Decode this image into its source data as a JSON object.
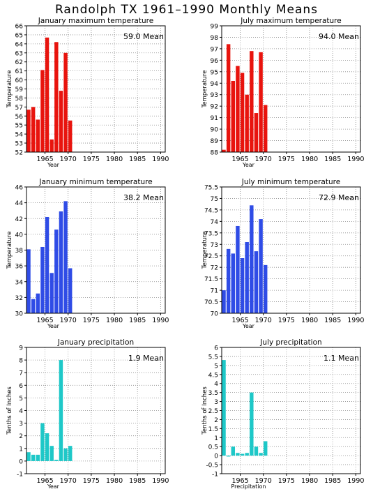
{
  "title": "Randolph TX   1961–1990 Monthly Means",
  "chart_data": [
    {
      "type": "bar",
      "title": "January maximum temperature",
      "ylabel": "Temperature",
      "xlabel": "Year",
      "color": "#e8140e",
      "ylim": [
        52,
        66
      ],
      "yticks": [
        52,
        53,
        54,
        55,
        56,
        57,
        58,
        59,
        60,
        61,
        62,
        63,
        64,
        65,
        66
      ],
      "xlim": [
        1961,
        1990
      ],
      "xticks": [
        1965,
        1970,
        1975,
        1980,
        1985,
        1990
      ],
      "mean_label": "59.0  Mean",
      "x": [
        1961,
        1962,
        1963,
        1964,
        1965,
        1966,
        1967,
        1968,
        1969,
        1970
      ],
      "values": [
        56.7,
        57.0,
        55.6,
        61.1,
        64.7,
        53.4,
        64.2,
        58.8,
        63.0,
        55.5
      ]
    },
    {
      "type": "bar",
      "title": "July maximum temperature",
      "ylabel": "Temperature",
      "xlabel": "Year",
      "color": "#e8140e",
      "ylim": [
        88,
        99
      ],
      "yticks": [
        88,
        89,
        90,
        91,
        92,
        93,
        94,
        95,
        96,
        97,
        98,
        99
      ],
      "xlim": [
        1961,
        1990
      ],
      "xticks": [
        1965,
        1970,
        1975,
        1980,
        1985,
        1990
      ],
      "mean_label": "94.0  Mean",
      "x": [
        1961,
        1962,
        1963,
        1964,
        1965,
        1966,
        1967,
        1968,
        1969,
        1970
      ],
      "values": [
        88.2,
        97.4,
        94.2,
        95.5,
        94.9,
        93.0,
        96.8,
        91.4,
        96.7,
        92.1
      ]
    },
    {
      "type": "bar",
      "title": "January minimum temperature",
      "ylabel": "Temperature",
      "xlabel": "Year",
      "color": "#2f4ce6",
      "ylim": [
        30,
        46
      ],
      "yticks": [
        30,
        32,
        34,
        36,
        38,
        40,
        42,
        44,
        46
      ],
      "xlim": [
        1961,
        1990
      ],
      "xticks": [
        1965,
        1970,
        1975,
        1980,
        1985,
        1990
      ],
      "mean_label": "38.2  Mean",
      "x": [
        1961,
        1962,
        1963,
        1964,
        1965,
        1966,
        1967,
        1968,
        1969,
        1970
      ],
      "values": [
        38.1,
        31.8,
        32.5,
        38.4,
        42.2,
        35.1,
        40.6,
        42.9,
        44.2,
        35.7
      ]
    },
    {
      "type": "bar",
      "title": "July minimum temperature",
      "ylabel": "Temperature",
      "xlabel": "Year",
      "color": "#2f4ce6",
      "ylim": [
        70,
        75.5
      ],
      "yticks": [
        70,
        70.5,
        71,
        71.5,
        72,
        72.5,
        73,
        73.5,
        74,
        74.5,
        75,
        75.5
      ],
      "ytick_labels": [
        "70",
        "70.5",
        "71",
        "71.5",
        "72",
        "72.5",
        "73",
        "73.5",
        "74",
        "74.5",
        "75",
        "75.5"
      ],
      "xlim": [
        1961,
        1990
      ],
      "xticks": [
        1965,
        1970,
        1975,
        1980,
        1985,
        1990
      ],
      "mean_label": "72.9  Mean",
      "x": [
        1961,
        1962,
        1963,
        1964,
        1965,
        1966,
        1967,
        1968,
        1969,
        1970
      ],
      "values": [
        71.0,
        72.8,
        72.6,
        73.8,
        72.4,
        73.1,
        74.7,
        72.7,
        74.1,
        72.1
      ]
    },
    {
      "type": "bar",
      "title": "January precipitation",
      "ylabel": "Tenths of Inches",
      "xlabel": "Year",
      "color": "#1ec8c8",
      "ylim": [
        -1,
        9
      ],
      "yticks": [
        -1,
        0,
        1,
        2,
        3,
        4,
        5,
        6,
        7,
        8,
        9
      ],
      "xlim": [
        1961,
        1990
      ],
      "xticks": [
        1965,
        1970,
        1975,
        1980,
        1985,
        1990
      ],
      "mean_label": "1.9  Mean",
      "x": [
        1961,
        1962,
        1963,
        1964,
        1965,
        1966,
        1967,
        1968,
        1969,
        1970
      ],
      "values": [
        0.7,
        0.5,
        0.5,
        3.0,
        2.2,
        1.2,
        0.1,
        8.0,
        1.0,
        1.2
      ]
    },
    {
      "type": "bar",
      "title": "July precipitation",
      "ylabel": "Tenths of Inches",
      "xlabel": "Precipitation",
      "color": "#1ec8c8",
      "ylim": [
        -1,
        6
      ],
      "yticks": [
        -1,
        -0.5,
        0,
        0.5,
        1,
        1.5,
        2,
        2.5,
        3,
        3.5,
        4,
        4.5,
        5,
        5.5,
        6
      ],
      "ytick_labels": [
        "-1",
        "-0.5",
        "0",
        "0.5",
        "1",
        "1.5",
        "2",
        "2.5",
        "3",
        "3.5",
        "4",
        "4.5",
        "5",
        "5.5",
        "6"
      ],
      "xlim": [
        1961,
        1990
      ],
      "xticks": [
        1965,
        1970,
        1975,
        1980,
        1985,
        1990
      ],
      "mean_label": "1.1  Mean",
      "x": [
        1961,
        1962,
        1963,
        1964,
        1965,
        1966,
        1967,
        1968,
        1969,
        1970
      ],
      "values": [
        5.3,
        -0.05,
        0.5,
        0.15,
        0.1,
        0.15,
        3.5,
        0.5,
        0.15,
        0.8
      ]
    }
  ]
}
